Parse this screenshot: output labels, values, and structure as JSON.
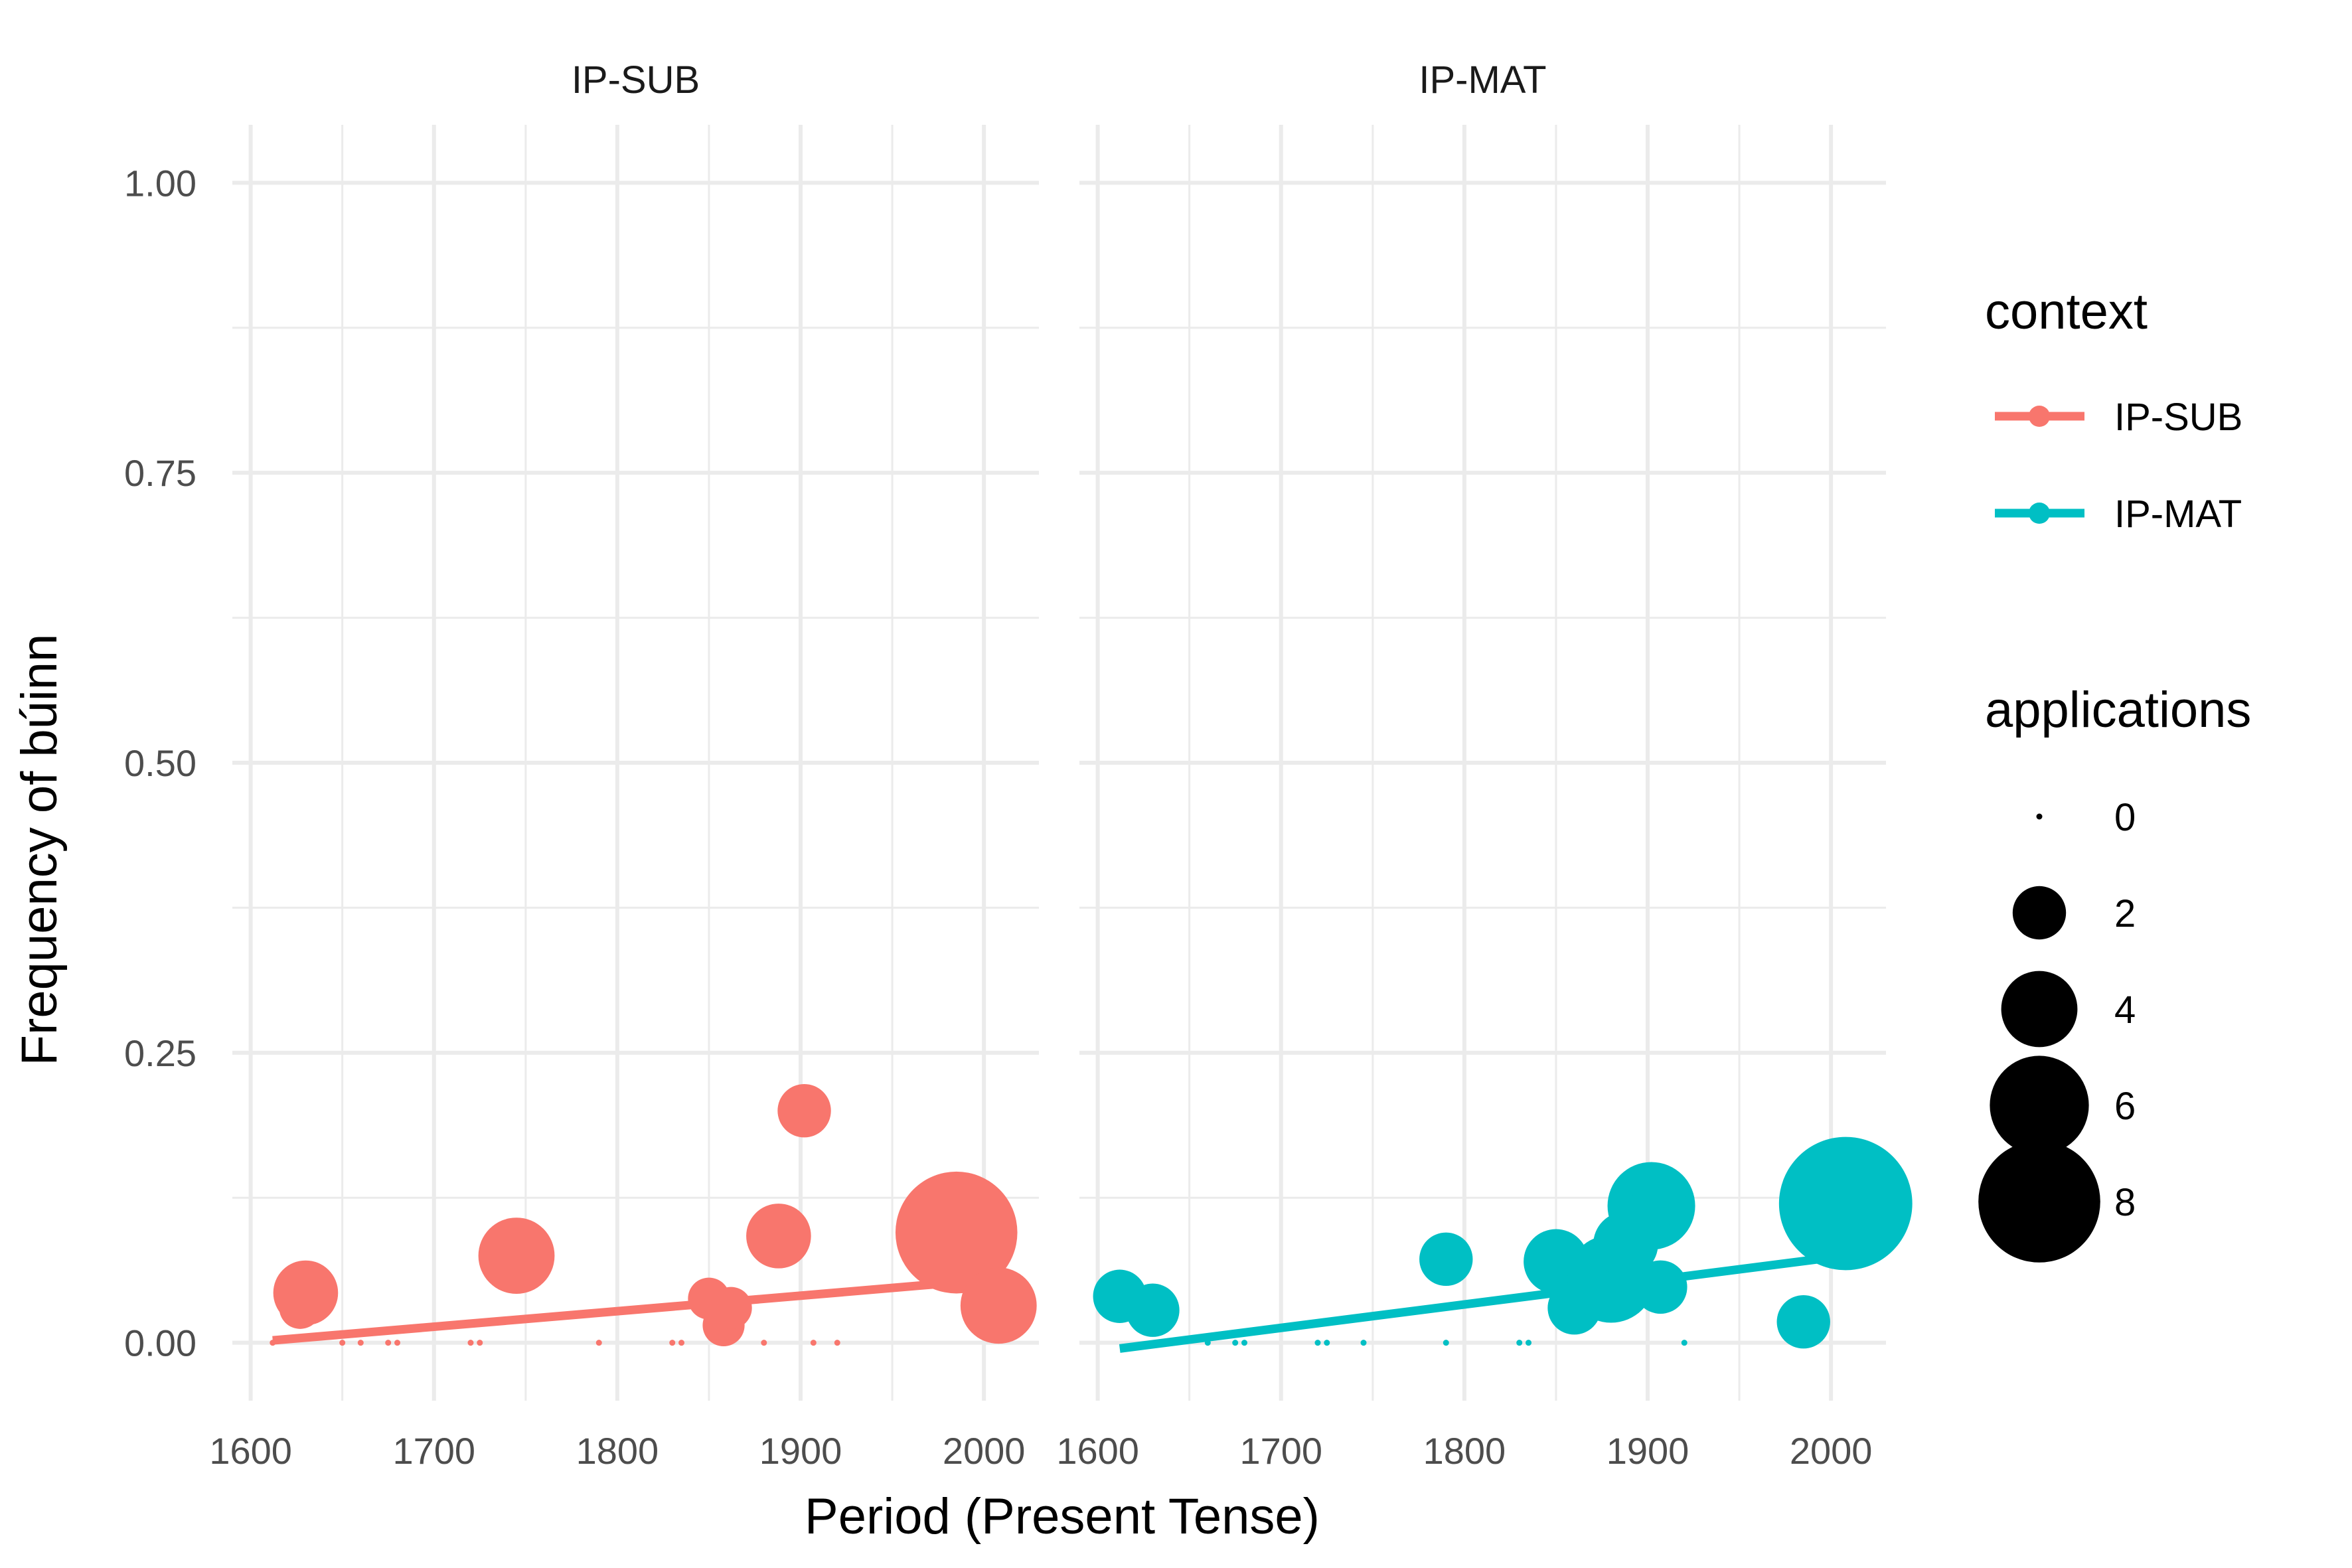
{
  "chart_data": {
    "type": "scatter",
    "facets": [
      "IP-SUB",
      "IP-MAT"
    ],
    "xlabel": "Period (Present Tense)",
    "ylabel": "Frequency of búinn",
    "xlim": [
      1590,
      2030
    ],
    "ylim": [
      -0.05,
      1.05
    ],
    "x_ticks": [
      1600,
      1700,
      1800,
      1900,
      2000
    ],
    "x_tick_labels": [
      "1600",
      "1700",
      "1800",
      "1900",
      "2000"
    ],
    "y_ticks": [
      0,
      0.25,
      0.5,
      0.75,
      1
    ],
    "y_tick_labels": [
      "0.00",
      "0.25",
      "0.50",
      "0.75",
      "1.00"
    ],
    "grid": true,
    "legend_position": "right",
    "legend": {
      "color_title": "context",
      "color_entries": [
        {
          "label": "IP-SUB",
          "color": "#F8766D"
        },
        {
          "label": "IP-MAT",
          "color": "#00BFC4"
        }
      ],
      "size_title": "applications",
      "size_entries": [
        {
          "label": "0",
          "value": 0
        },
        {
          "label": "2",
          "value": 2
        },
        {
          "label": "4",
          "value": 4
        },
        {
          "label": "6",
          "value": 6
        },
        {
          "label": "8",
          "value": 8
        }
      ]
    },
    "series": [
      {
        "name": "IP-SUB",
        "color": "#F8766D",
        "points": [
          {
            "x": 1612,
            "y": 0,
            "applications": 0
          },
          {
            "x": 1627,
            "y": 0.03,
            "applications": 1
          },
          {
            "x": 1630,
            "y": 0.043,
            "applications": 3
          },
          {
            "x": 1650,
            "y": 0,
            "applications": 0
          },
          {
            "x": 1660,
            "y": 0,
            "applications": 0
          },
          {
            "x": 1675,
            "y": 0,
            "applications": 0
          },
          {
            "x": 1680,
            "y": 0,
            "applications": 0
          },
          {
            "x": 1720,
            "y": 0,
            "applications": 0
          },
          {
            "x": 1725,
            "y": 0,
            "applications": 0
          },
          {
            "x": 1745,
            "y": 0.075,
            "applications": 4
          },
          {
            "x": 1790,
            "y": 0,
            "applications": 0
          },
          {
            "x": 1830,
            "y": 0,
            "applications": 0
          },
          {
            "x": 1835,
            "y": 0,
            "applications": 0
          },
          {
            "x": 1850,
            "y": 0.038,
            "applications": 1
          },
          {
            "x": 1858,
            "y": 0.015,
            "applications": 1
          },
          {
            "x": 1862,
            "y": 0.03,
            "applications": 1
          },
          {
            "x": 1880,
            "y": 0,
            "applications": 0
          },
          {
            "x": 1888,
            "y": 0.092,
            "applications": 3
          },
          {
            "x": 1902,
            "y": 0.2,
            "applications": 2
          },
          {
            "x": 1907,
            "y": 0,
            "applications": 0
          },
          {
            "x": 1920,
            "y": 0,
            "applications": 0
          },
          {
            "x": 1985,
            "y": 0.095,
            "applications": 8
          },
          {
            "x": 2008,
            "y": 0.032,
            "applications": 4
          }
        ],
        "fit": {
          "x": [
            1612,
            2008
          ],
          "y": [
            0.002,
            0.055
          ]
        }
      },
      {
        "name": "IP-MAT",
        "color": "#00BFC4",
        "points": [
          {
            "x": 1612,
            "y": 0.04,
            "applications": 2
          },
          {
            "x": 1630,
            "y": 0.028,
            "applications": 2
          },
          {
            "x": 1660,
            "y": 0,
            "applications": 0
          },
          {
            "x": 1675,
            "y": 0,
            "applications": 0
          },
          {
            "x": 1680,
            "y": 0,
            "applications": 0
          },
          {
            "x": 1720,
            "y": 0,
            "applications": 0
          },
          {
            "x": 1725,
            "y": 0,
            "applications": 0
          },
          {
            "x": 1745,
            "y": 0,
            "applications": 0
          },
          {
            "x": 1790,
            "y": 0.072,
            "applications": 2
          },
          {
            "x": 1790,
            "y": 0,
            "applications": 0
          },
          {
            "x": 1830,
            "y": 0,
            "applications": 0
          },
          {
            "x": 1835,
            "y": 0,
            "applications": 0
          },
          {
            "x": 1850,
            "y": 0.07,
            "applications": 3
          },
          {
            "x": 1860,
            "y": 0.03,
            "applications": 2
          },
          {
            "x": 1880,
            "y": 0.055,
            "applications": 5
          },
          {
            "x": 1888,
            "y": 0.085,
            "applications": 3
          },
          {
            "x": 1902,
            "y": 0.118,
            "applications": 5
          },
          {
            "x": 1906,
            "y": 0.123,
            "applications": 2
          },
          {
            "x": 1907,
            "y": 0.048,
            "applications": 2
          },
          {
            "x": 1920,
            "y": 0,
            "applications": 0
          },
          {
            "x": 1985,
            "y": 0.018,
            "applications": 2
          },
          {
            "x": 2008,
            "y": 0.12,
            "applications": 9
          }
        ],
        "fit": {
          "x": [
            1612,
            2008
          ],
          "y": [
            -0.005,
            0.075
          ]
        }
      }
    ]
  }
}
